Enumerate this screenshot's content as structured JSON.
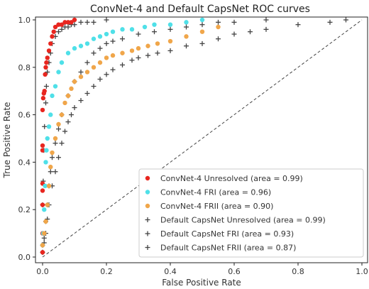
{
  "chart_data": {
    "type": "scatter",
    "title": "ConvNet-4 and Default CapsNet ROC curves",
    "xlabel": "False Positive Rate",
    "ylabel": "True Positive Rate",
    "xlim": [
      0,
      1
    ],
    "ylim": [
      0,
      1
    ],
    "xticks": [
      "0.0",
      "0.2",
      "0.4",
      "0.6",
      "0.8",
      "1.0"
    ],
    "yticks": [
      "0.0",
      "0.2",
      "0.4",
      "0.6",
      "0.8",
      "1.0"
    ],
    "grid": false,
    "legend_position": "bottom-right",
    "diagonal_reference": {
      "style": "dashed",
      "from": [
        0,
        0
      ],
      "to": [
        1,
        1
      ],
      "color": "#444444"
    },
    "series": [
      {
        "name": "ConvNet-4 Unresolved (area = 0.99)",
        "marker": "dot",
        "color": "#e8261f",
        "x": [
          0,
          0,
          0,
          0,
          0,
          0,
          0,
          0,
          0.002,
          0.004,
          0.006,
          0.008,
          0.01,
          0.012,
          0.015,
          0.02,
          0.025,
          0.03,
          0.035,
          0.04,
          0.05,
          0.06,
          0.07,
          0.08,
          0.09,
          0.1
        ],
        "y": [
          0.02,
          0.1,
          0.22,
          0.28,
          0.31,
          0.45,
          0.47,
          0.62,
          0.67,
          0.69,
          0.7,
          0.77,
          0.8,
          0.82,
          0.84,
          0.87,
          0.9,
          0.93,
          0.95,
          0.97,
          0.98,
          0.98,
          0.99,
          0.99,
          0.99,
          1.0
        ]
      },
      {
        "name": "ConvNet-4 FRI (area = 0.96)",
        "marker": "dot",
        "color": "#4fe0e8",
        "x": [
          0,
          0.002,
          0.005,
          0.008,
          0.01,
          0.012,
          0.015,
          0.02,
          0.025,
          0.03,
          0.04,
          0.05,
          0.06,
          0.08,
          0.1,
          0.12,
          0.14,
          0.16,
          0.18,
          0.2,
          0.22,
          0.25,
          0.28,
          0.32,
          0.35,
          0.4,
          0.45,
          0.5
        ],
        "y": [
          0.05,
          0.1,
          0.2,
          0.3,
          0.4,
          0.45,
          0.5,
          0.55,
          0.6,
          0.68,
          0.72,
          0.78,
          0.82,
          0.86,
          0.88,
          0.89,
          0.9,
          0.92,
          0.93,
          0.94,
          0.95,
          0.96,
          0.96,
          0.97,
          0.98,
          0.98,
          0.99,
          1.0
        ]
      },
      {
        "name": "ConvNet-4 FRII (area = 0.90)",
        "marker": "dot",
        "color": "#f0a64a",
        "x": [
          0,
          0.005,
          0.01,
          0.015,
          0.02,
          0.025,
          0.03,
          0.04,
          0.05,
          0.06,
          0.07,
          0.08,
          0.09,
          0.1,
          0.12,
          0.14,
          0.16,
          0.18,
          0.2,
          0.22,
          0.25,
          0.28,
          0.3,
          0.33,
          0.36,
          0.4,
          0.45,
          0.5,
          0.55
        ],
        "y": [
          0.05,
          0.1,
          0.15,
          0.22,
          0.3,
          0.38,
          0.44,
          0.5,
          0.56,
          0.6,
          0.65,
          0.68,
          0.71,
          0.74,
          0.76,
          0.78,
          0.8,
          0.82,
          0.84,
          0.85,
          0.86,
          0.87,
          0.88,
          0.89,
          0.9,
          0.91,
          0.93,
          0.95,
          0.97
        ]
      },
      {
        "name": "Default CapsNet Unresolved (area = 0.99)",
        "marker": "plus",
        "color": "#444444",
        "x": [
          0,
          0,
          0.002,
          0.004,
          0.006,
          0.01,
          0.012,
          0.015,
          0.02,
          0.025,
          0.03,
          0.04,
          0.05,
          0.06,
          0.07,
          0.08,
          0.09,
          0.1,
          0.12,
          0.14,
          0.16,
          0.2
        ],
        "y": [
          0.05,
          0.22,
          0.32,
          0.45,
          0.55,
          0.65,
          0.72,
          0.78,
          0.82,
          0.86,
          0.9,
          0.93,
          0.95,
          0.96,
          0.97,
          0.97,
          0.98,
          0.98,
          0.99,
          0.99,
          0.99,
          1.0
        ]
      },
      {
        "name": "Default CapsNet FRI (area = 0.93)",
        "marker": "plus",
        "color": "#444444",
        "x": [
          0,
          0.005,
          0.01,
          0.015,
          0.02,
          0.025,
          0.03,
          0.04,
          0.05,
          0.06,
          0.08,
          0.1,
          0.12,
          0.14,
          0.16,
          0.18,
          0.2,
          0.22,
          0.25,
          0.3,
          0.35,
          0.4,
          0.45,
          0.5,
          0.55,
          0.6,
          0.7
        ],
        "y": [
          0.02,
          0.08,
          0.15,
          0.22,
          0.3,
          0.36,
          0.42,
          0.48,
          0.54,
          0.6,
          0.68,
          0.74,
          0.78,
          0.82,
          0.86,
          0.88,
          0.9,
          0.91,
          0.92,
          0.94,
          0.95,
          0.96,
          0.97,
          0.98,
          0.99,
          0.99,
          1.0
        ]
      },
      {
        "name": "Default CapsNet FRII (area = 0.87)",
        "marker": "plus",
        "color": "#444444",
        "x": [
          0,
          0.005,
          0.01,
          0.015,
          0.02,
          0.03,
          0.04,
          0.05,
          0.06,
          0.07,
          0.08,
          0.09,
          0.1,
          0.12,
          0.14,
          0.16,
          0.18,
          0.2,
          0.22,
          0.25,
          0.28,
          0.3,
          0.33,
          0.36,
          0.4,
          0.45,
          0.5,
          0.55,
          0.6,
          0.65,
          0.7,
          0.8,
          0.9,
          0.95
        ],
        "y": [
          0.02,
          0.06,
          0.1,
          0.16,
          0.22,
          0.3,
          0.36,
          0.42,
          0.48,
          0.53,
          0.57,
          0.6,
          0.63,
          0.66,
          0.69,
          0.72,
          0.75,
          0.77,
          0.79,
          0.81,
          0.83,
          0.84,
          0.85,
          0.86,
          0.87,
          0.89,
          0.9,
          0.92,
          0.94,
          0.95,
          0.96,
          0.98,
          0.99,
          1.0
        ]
      }
    ]
  }
}
